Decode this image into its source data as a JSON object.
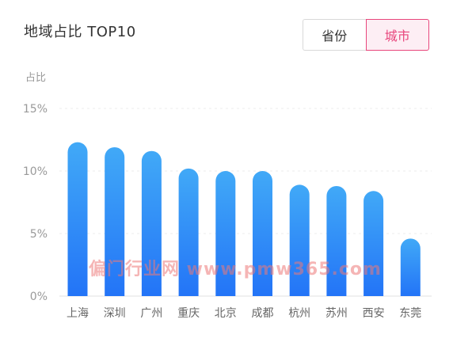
{
  "header": {
    "title": "地域占比 TOP10"
  },
  "toggle": {
    "province_label": "省份",
    "city_label": "城市",
    "selected": "city"
  },
  "watermark": "偏门行业网 www.pmw365.com",
  "colors": {
    "bar_top": "#41a9f7",
    "bar_bottom": "#2374f7",
    "accent": "#e8467c"
  },
  "chart_data": {
    "type": "bar",
    "ylabel": "占比",
    "categories": [
      "上海",
      "深圳",
      "广州",
      "重庆",
      "北京",
      "成都",
      "杭州",
      "苏州",
      "西安",
      "东莞"
    ],
    "values": [
      12.3,
      11.9,
      11.6,
      10.2,
      10.0,
      10.0,
      8.9,
      8.8,
      8.4,
      4.6
    ],
    "ylim": [
      0,
      15
    ],
    "yticks": [
      "0%",
      "5%",
      "10%",
      "15%"
    ],
    "ytick_values": [
      0,
      5,
      10,
      15
    ],
    "grid": true,
    "legend": "none"
  }
}
